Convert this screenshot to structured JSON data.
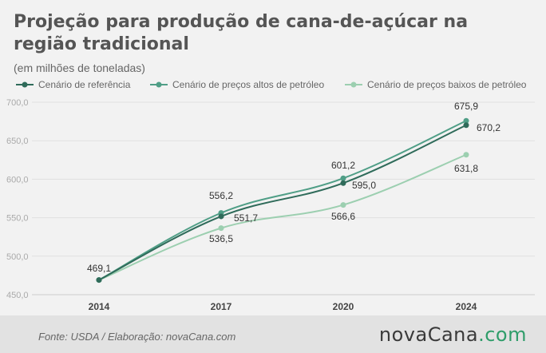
{
  "header": {
    "title": "Projeção para produção de cana-de-açúcar na região tradicional",
    "subtitle": "(em milhões de toneladas)"
  },
  "footer": {
    "source": "Fonte: USDA / Elaboração: novaCana.com",
    "logo_main": "novaCana",
    "logo_dot": ".",
    "logo_suffix": "com"
  },
  "chart_data": {
    "type": "line",
    "x": [
      "2014",
      "2017",
      "2020",
      "2024"
    ],
    "ylim": [
      450,
      700
    ],
    "yticks": [
      "450,0",
      "500,0",
      "550,0",
      "600,0",
      "650,0",
      "700,0"
    ],
    "ytick_values": [
      450,
      500,
      550,
      600,
      650,
      700
    ],
    "grid": true,
    "legend_position": "top",
    "series": [
      {
        "name": "Cenário de referência",
        "color": "#2f6b5a",
        "values": [
          469.1,
          551.7,
          595.0,
          670.2
        ],
        "labels": [
          "469,1",
          "551,7",
          "595,0",
          "670,2"
        ]
      },
      {
        "name": "Cenário de preços altos de petróleo",
        "color": "#4f9e86",
        "values": [
          469.1,
          556.2,
          601.2,
          675.9
        ],
        "labels": [
          "",
          "556,2",
          "601,2",
          "675,9"
        ]
      },
      {
        "name": "Cenário de preços baixos de petróleo",
        "color": "#9ccfb0",
        "values": [
          469.1,
          536.5,
          566.6,
          631.8
        ],
        "labels": [
          "",
          "536,5",
          "566,6",
          "631,8"
        ]
      }
    ]
  }
}
